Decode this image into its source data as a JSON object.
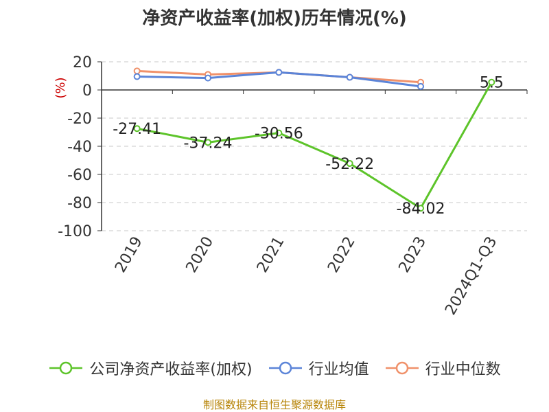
{
  "chart_data": {
    "type": "line",
    "title": "净资产收益率(加权)历年情况(%)",
    "ylabel": "(%)",
    "categories": [
      "2019",
      "2020",
      "2021",
      "2022",
      "2023",
      "2024Q1-Q3"
    ],
    "ylim": [
      -100,
      20
    ],
    "yticks": [
      20,
      0,
      -20,
      -40,
      -60,
      -80,
      -100
    ],
    "grid": true,
    "legend_position": "bottom",
    "series": [
      {
        "name": "公司净资产收益率(加权)",
        "color": "#5dc42a",
        "values": [
          -27.41,
          -37.24,
          -30.56,
          -52.22,
          -84.02,
          5.5
        ],
        "labels": [
          "-27.41",
          "-37.24",
          "-30.56",
          "-52.22",
          "-84.02",
          "5.5"
        ]
      },
      {
        "name": "行业均值",
        "color": "#5b84d8",
        "values": [
          9.5,
          8.5,
          12.5,
          9.0,
          2.5,
          null
        ]
      },
      {
        "name": "行业中位数",
        "color": "#f0916a",
        "values": [
          13.5,
          11.0,
          12.5,
          9.0,
          5.5,
          null
        ]
      }
    ]
  },
  "source_note": "制图数据来自恒生聚源数据库"
}
